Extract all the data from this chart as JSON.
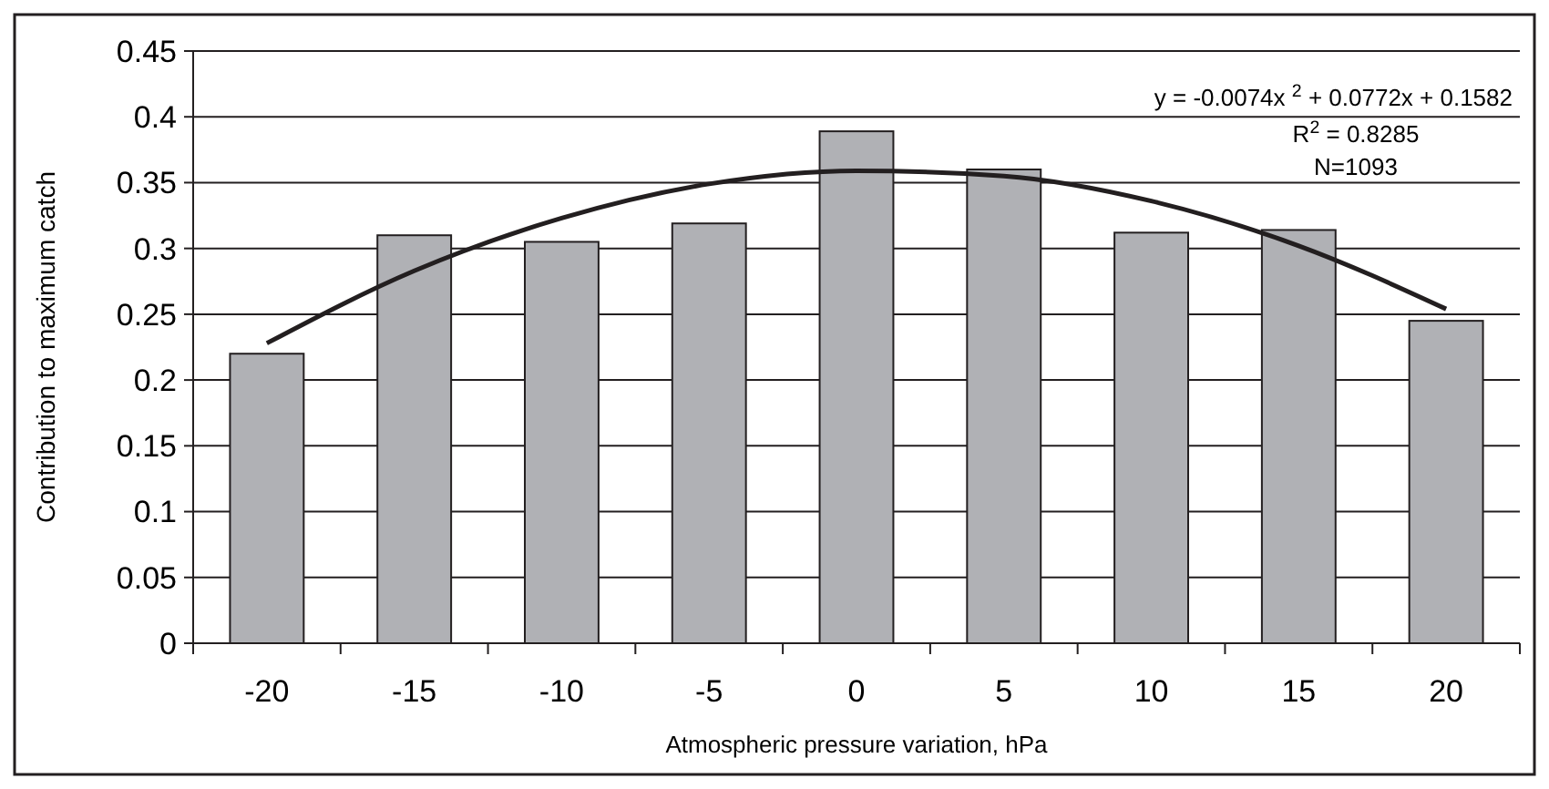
{
  "chart_data": {
    "type": "bar",
    "xlabel": "Atmospheric pressure variation, hPa",
    "ylabel": "Contribution to maximum catch",
    "categories": [
      "-20",
      "-15",
      "-10",
      "-5",
      "0",
      "5",
      "10",
      "15",
      "20"
    ],
    "series": [
      {
        "color": "#b0b1b5",
        "values": [
          0.22,
          0.31,
          0.305,
          0.319,
          0.389,
          0.36,
          0.312,
          0.314,
          0.245
        ]
      },
      {
        "type": "line",
        "color": "#231f20",
        "values": [
          0.228,
          0.283,
          0.323,
          0.349,
          0.359,
          0.355,
          0.336,
          0.302,
          0.254
        ]
      }
    ],
    "ylim": [
      0,
      0.45
    ],
    "yticks": [
      0,
      {
        "value": 0.05,
        "label": "0.05"
      },
      {
        "value": 0.1,
        "label": "0.1"
      },
      {
        "value": 0.15,
        "label": "0.15"
      },
      {
        "value": 0.2,
        "label": "0.2"
      },
      {
        "value": 0.25,
        "label": "0.25"
      },
      {
        "value": 0.3,
        "label": "0.3"
      },
      {
        "value": 0.35,
        "label": "0.35"
      },
      {
        "value": 0.4,
        "label": "0.4"
      },
      {
        "value": 0.45,
        "label": "0.45"
      }
    ],
    "grid": "y",
    "marker": "none",
    "line_style": "solid",
    "annotations": [
      "y = -0.0074x $^{2}$ + 0.0772x + 0.1582",
      "R$^{2}$ = 0.8285",
      "N=1093"
    ]
  }
}
